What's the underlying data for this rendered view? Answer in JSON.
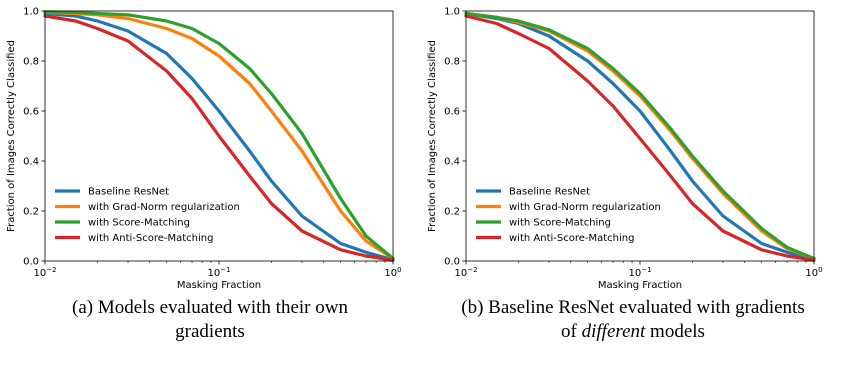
{
  "chart_data": [
    {
      "type": "line",
      "xlabel": "Masking Fraction",
      "ylabel": "Fraction of Images Correctly Classified",
      "xscale": "log",
      "xlim": [
        0.01,
        1.0
      ],
      "ylim": [
        0,
        1.0
      ],
      "xticks": [
        {
          "v": 0.01,
          "base": "10",
          "exp": "−2"
        },
        {
          "v": 0.1,
          "base": "10",
          "exp": "−1"
        },
        {
          "v": 1.0,
          "base": "10",
          "exp": "0"
        }
      ],
      "yticks": [
        "0.0",
        "0.2",
        "0.4",
        "0.6",
        "0.8",
        "1.0"
      ],
      "legend": "lower-left",
      "series": [
        {
          "name": "Baseline ResNet",
          "color": "#1f77b4",
          "x": [
            0.01,
            0.015,
            0.02,
            0.03,
            0.05,
            0.07,
            0.1,
            0.15,
            0.2,
            0.3,
            0.5,
            0.7,
            1.0
          ],
          "y": [
            0.99,
            0.98,
            0.96,
            0.92,
            0.83,
            0.73,
            0.6,
            0.44,
            0.32,
            0.18,
            0.07,
            0.035,
            0.005
          ]
        },
        {
          "name": "with Grad-Norm regularization",
          "color": "#ff7f0e",
          "x": [
            0.01,
            0.015,
            0.02,
            0.03,
            0.05,
            0.07,
            0.1,
            0.15,
            0.2,
            0.3,
            0.5,
            0.7,
            1.0
          ],
          "y": [
            0.995,
            0.99,
            0.985,
            0.97,
            0.93,
            0.89,
            0.82,
            0.71,
            0.6,
            0.44,
            0.2,
            0.08,
            0.01
          ]
        },
        {
          "name": "with Score-Matching",
          "color": "#2ca02c",
          "x": [
            0.01,
            0.015,
            0.02,
            0.03,
            0.05,
            0.07,
            0.1,
            0.15,
            0.2,
            0.3,
            0.5,
            0.7,
            1.0
          ],
          "y": [
            0.997,
            0.995,
            0.99,
            0.985,
            0.96,
            0.93,
            0.87,
            0.77,
            0.67,
            0.51,
            0.25,
            0.1,
            0.01
          ]
        },
        {
          "name": "with Anti-Score-Matching",
          "color": "#d62728",
          "x": [
            0.01,
            0.015,
            0.02,
            0.03,
            0.05,
            0.07,
            0.1,
            0.15,
            0.2,
            0.3,
            0.5,
            0.7,
            1.0
          ],
          "y": [
            0.98,
            0.96,
            0.93,
            0.88,
            0.76,
            0.65,
            0.5,
            0.34,
            0.23,
            0.12,
            0.045,
            0.02,
            0.003
          ]
        }
      ]
    },
    {
      "type": "line",
      "xlabel": "Masking Fraction",
      "ylabel": "Fraction of Images Correctly Classified",
      "xscale": "log",
      "xlim": [
        0.01,
        1.0
      ],
      "ylim": [
        0,
        1.0
      ],
      "xticks": [
        {
          "v": 0.01,
          "base": "10",
          "exp": "−2"
        },
        {
          "v": 0.1,
          "base": "10",
          "exp": "−1"
        },
        {
          "v": 1.0,
          "base": "10",
          "exp": "0"
        }
      ],
      "yticks": [
        "0.0",
        "0.2",
        "0.4",
        "0.6",
        "0.8",
        "1.0"
      ],
      "legend": "lower-left",
      "series": [
        {
          "name": "Baseline ResNet",
          "color": "#1f77b4",
          "x": [
            0.01,
            0.015,
            0.02,
            0.03,
            0.05,
            0.07,
            0.1,
            0.15,
            0.2,
            0.3,
            0.5,
            0.7,
            1.0
          ],
          "y": [
            0.99,
            0.97,
            0.95,
            0.9,
            0.8,
            0.71,
            0.6,
            0.44,
            0.32,
            0.18,
            0.07,
            0.035,
            0.005
          ]
        },
        {
          "name": "with Grad-Norm regularization",
          "color": "#ff7f0e",
          "x": [
            0.01,
            0.015,
            0.02,
            0.03,
            0.05,
            0.07,
            0.1,
            0.15,
            0.2,
            0.3,
            0.5,
            0.7,
            1.0
          ],
          "y": [
            0.99,
            0.975,
            0.955,
            0.92,
            0.84,
            0.76,
            0.66,
            0.52,
            0.41,
            0.27,
            0.12,
            0.05,
            0.01
          ]
        },
        {
          "name": "with Score-Matching",
          "color": "#2ca02c",
          "x": [
            0.01,
            0.015,
            0.02,
            0.03,
            0.05,
            0.07,
            0.1,
            0.15,
            0.2,
            0.3,
            0.5,
            0.7,
            1.0
          ],
          "y": [
            0.99,
            0.975,
            0.96,
            0.925,
            0.85,
            0.77,
            0.67,
            0.53,
            0.42,
            0.28,
            0.13,
            0.055,
            0.01
          ]
        },
        {
          "name": "with Anti-Score-Matching",
          "color": "#d62728",
          "x": [
            0.01,
            0.015,
            0.02,
            0.03,
            0.05,
            0.07,
            0.1,
            0.15,
            0.2,
            0.3,
            0.5,
            0.7,
            1.0
          ],
          "y": [
            0.98,
            0.95,
            0.91,
            0.85,
            0.72,
            0.62,
            0.49,
            0.34,
            0.23,
            0.12,
            0.045,
            0.02,
            0.003
          ]
        }
      ]
    }
  ],
  "captions": {
    "a_line1": "(a) Models evaluated with their own",
    "a_line2": "gradients",
    "b_line1": "(b) Baseline ResNet evaluated with gradients",
    "b_line2_pre": "of ",
    "b_line2_em": "different",
    "b_line2_post": " models"
  }
}
